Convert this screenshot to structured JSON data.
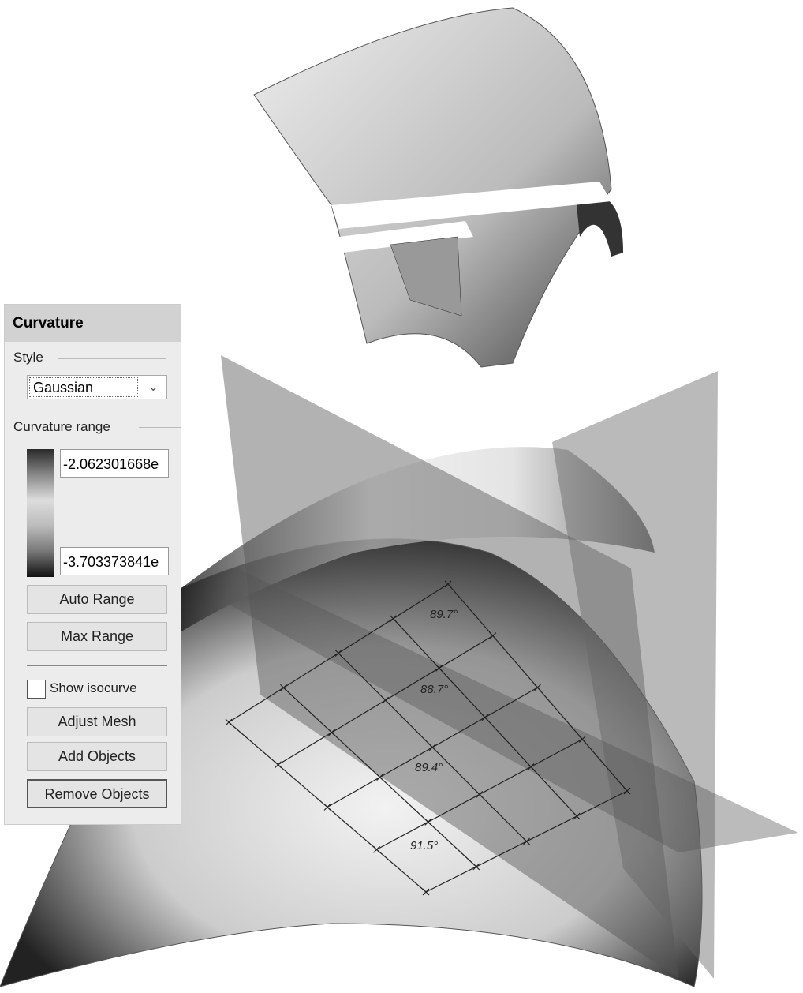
{
  "panel": {
    "title": "Curvature",
    "style_label": "Style",
    "style_value": "Gaussian",
    "range_label": "Curvature range",
    "range_max": "-2.062301668e",
    "range_min": "-3.703373841e",
    "buttons": [
      "Auto Range",
      "Max Range"
    ],
    "checkbox": "Show isocurve",
    "buttons2": [
      "Adjust Mesh",
      "Add Objects",
      "Remove Objects"
    ]
  },
  "annotations": [
    "89.7°",
    "88.7°",
    "89.4°",
    "91.5°"
  ]
}
